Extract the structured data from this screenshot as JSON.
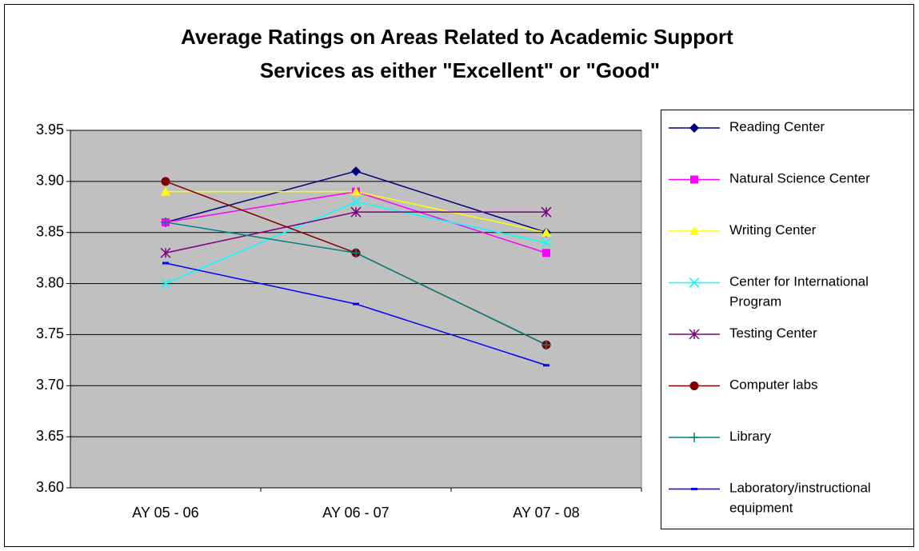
{
  "chart_data": {
    "type": "line",
    "title": "Average Ratings on Areas Related to Academic Support Services as either \"Excellent\" or \"Good\"",
    "categories": [
      "AY 05 - 06",
      "AY 06 - 07",
      "AY 07 - 08"
    ],
    "ylim": [
      3.6,
      3.95
    ],
    "yticks": [
      {
        "value": 3.6,
        "label": "3.60"
      },
      3.65,
      {
        "value": 3.7,
        "label": "3.70"
      },
      3.75,
      {
        "value": 3.8,
        "label": "3.80"
      },
      3.85,
      {
        "value": 3.9,
        "label": "3.90"
      },
      3.95
    ],
    "grid": true,
    "legend": "right",
    "series": [
      {
        "name": "Reading Center",
        "color": "#000080",
        "marker": "diamond",
        "values": [
          3.86,
          3.91,
          3.85
        ]
      },
      {
        "name": "Natural Science Center",
        "color": "#ff00ff",
        "marker": "square",
        "values": [
          3.86,
          3.89,
          3.83
        ]
      },
      {
        "name": "Writing Center",
        "color": "#ffff00",
        "marker": "triangle",
        "values": [
          3.89,
          3.89,
          3.85
        ]
      },
      {
        "name": "Center for International Program",
        "color": "#00ffff",
        "marker": "x",
        "values": [
          3.8,
          3.88,
          3.84
        ]
      },
      {
        "name": "Testing Center",
        "color": "#800080",
        "marker": "asterisk",
        "values": [
          3.83,
          3.87,
          3.87
        ]
      },
      {
        "name": "Computer labs",
        "color": "#800000",
        "marker": "circle",
        "values": [
          3.9,
          3.83,
          3.74
        ]
      },
      {
        "name": "Library",
        "color": "#008080",
        "marker": "plus",
        "values": [
          3.86,
          3.83,
          3.74
        ]
      },
      {
        "name": "Laboratory/instructional equipment",
        "color": "#0000ff",
        "marker": "dash",
        "values": [
          3.82,
          3.78,
          3.72
        ]
      }
    ]
  }
}
